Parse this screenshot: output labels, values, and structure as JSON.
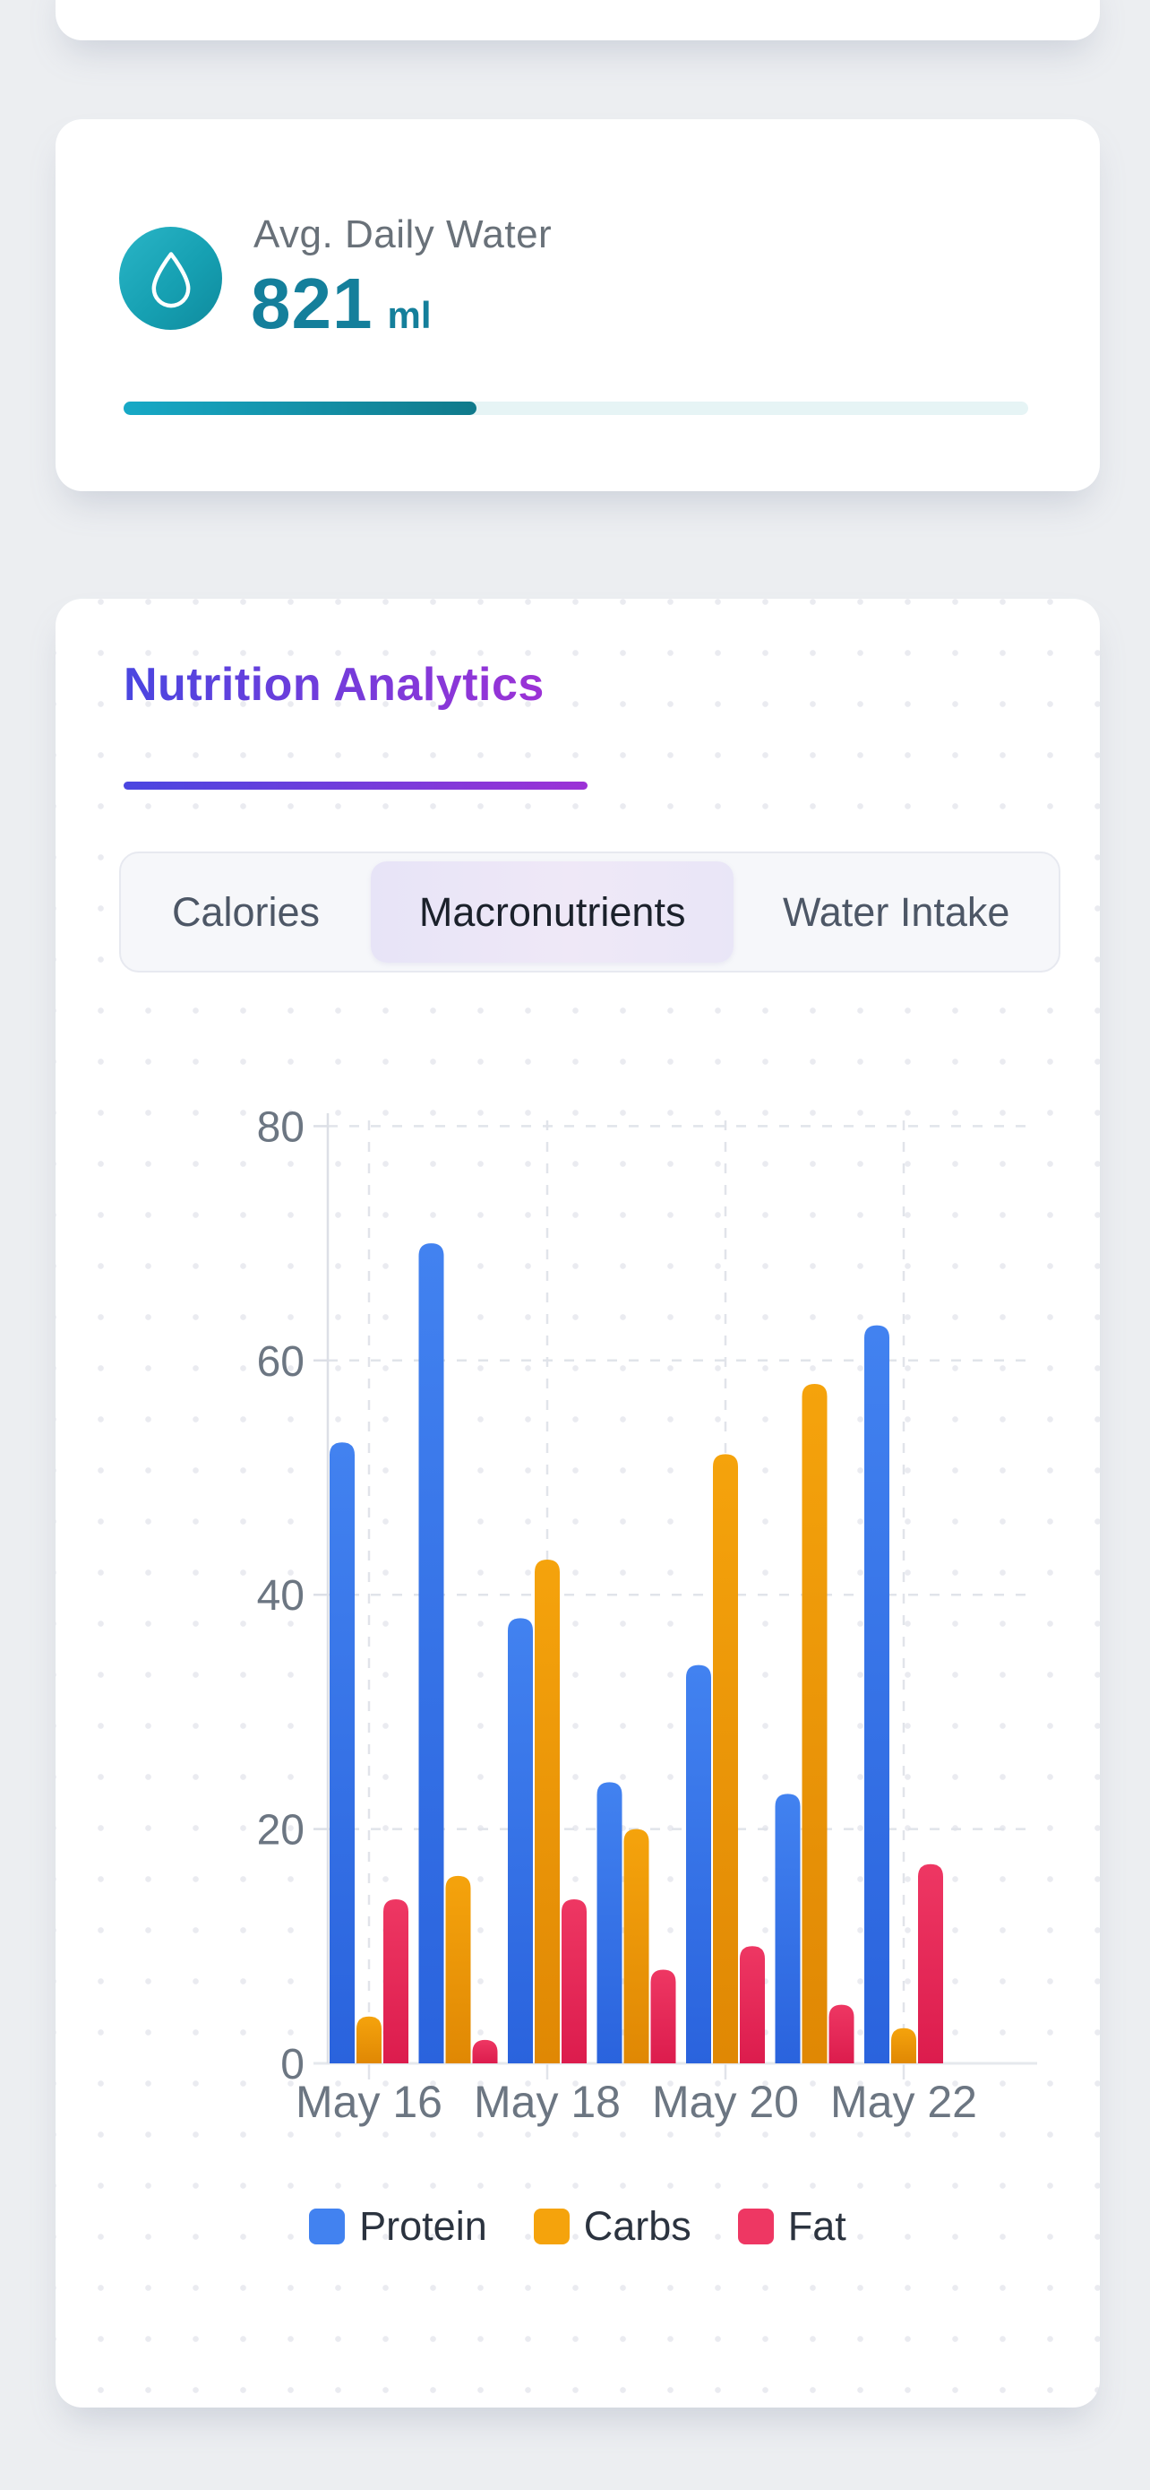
{
  "screen": {
    "background": "#eceef1"
  },
  "water_card": {
    "label": "Avg. Daily Water",
    "value": "821",
    "unit": "ml",
    "progress_percent": 39,
    "accent_color": "#147f9b",
    "icon": "water-drop-icon",
    "progress_gradient": [
      "#17a9c6",
      "#107a8b"
    ],
    "track_color": "#e6f4f5"
  },
  "analytics_card": {
    "title": "Nutrition Analytics",
    "title_gradient": [
      "#4a46e0",
      "#9c32d6"
    ],
    "tabs": [
      {
        "label": "Calories",
        "active": false
      },
      {
        "label": "Macronutrients",
        "active": true
      },
      {
        "label": "Water Intake",
        "active": false
      }
    ]
  },
  "chart_data": {
    "type": "bar",
    "title": "",
    "categories": [
      "May 16",
      "May 17",
      "May 18",
      "May 19",
      "May 20",
      "May 21",
      "May 22"
    ],
    "x_tick_labels": [
      "May 16",
      "May 18",
      "May 20",
      "May 22"
    ],
    "series": [
      {
        "name": "Protein",
        "color": "#4282f0",
        "color_dark": "#2a63dd",
        "values": [
          53,
          70,
          38,
          24,
          34,
          23,
          63
        ]
      },
      {
        "name": "Carbs",
        "color": "#f5a30c",
        "color_dark": "#e08804",
        "values": [
          4,
          16,
          43,
          20,
          52,
          58,
          3
        ]
      },
      {
        "name": "Fat",
        "color": "#ee3763",
        "color_dark": "#dc1c4d",
        "values": [
          14,
          2,
          14,
          8,
          10,
          5,
          17
        ]
      }
    ],
    "ylim": [
      0,
      80
    ],
    "yticks": [
      0,
      20,
      40,
      60,
      80
    ],
    "grid": true,
    "legend_position": "bottom",
    "axis_color": "#dcdfe6",
    "grid_color": "#e1e4ea",
    "label_color": "#6c7682"
  }
}
